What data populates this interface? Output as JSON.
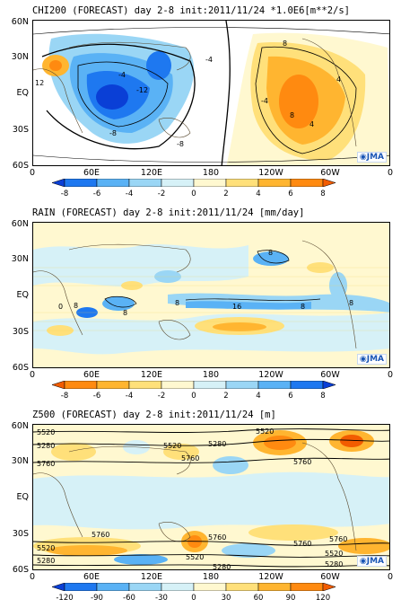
{
  "lat_labels": [
    "60N",
    "30N",
    "EQ",
    "30S",
    "60S"
  ],
  "lon_labels": [
    "0",
    "60E",
    "120E",
    "180",
    "120W",
    "60W",
    "0"
  ],
  "logo_text": "JMA",
  "panels": [
    {
      "id": "chi200",
      "title": "CHI200 (FORECAST) day 2-8 init:2011/11/24  *1.0E6[m**2/s]",
      "colorbar": {
        "colors": [
          "#0a3fd6",
          "#1e78f0",
          "#5ab2f5",
          "#9ad6f5",
          "#d6f1f7",
          "#fff8d0",
          "#ffe07a",
          "#ffb530",
          "#ff8a10",
          "#f25c00"
        ],
        "labels": [
          "-8",
          "-6",
          "-4",
          "-2",
          "0",
          "2",
          "4",
          "6",
          "8"
        ]
      },
      "contour_labels": [
        "-4",
        "-12",
        "-8",
        "12",
        "-4",
        "-8",
        "8",
        "-4",
        "8",
        "4",
        "4"
      ]
    },
    {
      "id": "rain",
      "title": "RAIN (FORECAST) day 2-8 init:2011/11/24  [mm/day]",
      "colorbar": {
        "colors": [
          "#f25c00",
          "#ff8a10",
          "#ffb530",
          "#ffe07a",
          "#fff8d0",
          "#d6f1f7",
          "#9ad6f5",
          "#5ab2f5",
          "#1e78f0",
          "#0a3fd6"
        ],
        "labels": [
          "-8",
          "-6",
          "-4",
          "-2",
          "0",
          "2",
          "4",
          "6",
          "8"
        ]
      },
      "contour_labels": [
        "8",
        "8",
        "8",
        "16",
        "8",
        "8",
        "0",
        "8"
      ]
    },
    {
      "id": "z500",
      "title": "Z500 (FORECAST) day 2-8 init:2011/11/24  [m]",
      "colorbar": {
        "colors": [
          "#0a3fd6",
          "#1e78f0",
          "#5ab2f5",
          "#9ad6f5",
          "#d6f1f7",
          "#fff8d0",
          "#ffe07a",
          "#ffb530",
          "#ff8a10",
          "#f25c00"
        ],
        "labels": [
          "-120",
          "-90",
          "-60",
          "-30",
          "0",
          "30",
          "60",
          "90",
          "120"
        ]
      },
      "contour_labels": [
        "5520",
        "5280",
        "5520",
        "5760",
        "5760",
        "5520",
        "5280",
        "5760",
        "5760",
        "5760",
        "5520",
        "5280",
        "5760",
        "5520",
        "5280",
        "5760",
        "5520",
        "5280"
      ]
    }
  ]
}
